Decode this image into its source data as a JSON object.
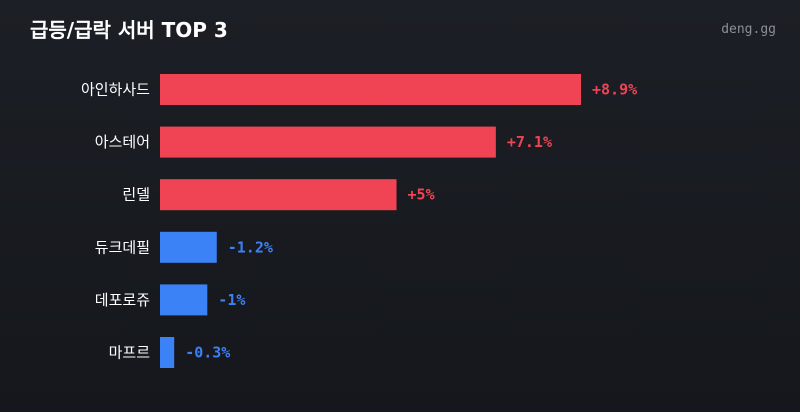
{
  "header": {
    "title": "급등/급락 서버 TOP 3",
    "brand": "deng.gg"
  },
  "colors": {
    "positive": "#f04455",
    "negative": "#3b82f6"
  },
  "chart_data": {
    "type": "bar",
    "orientation": "horizontal",
    "title": "급등/급락 서버 TOP 3",
    "categories": [
      "아인하사드",
      "아스테어",
      "린델",
      "듀크데필",
      "데포로쥬",
      "마프르"
    ],
    "values": [
      8.9,
      7.1,
      5,
      -1.2,
      -1,
      -0.3
    ],
    "value_labels": [
      "+8.9%",
      "+7.1%",
      "+5%",
      "-1.2%",
      "-1%",
      "-0.3%"
    ],
    "grid": false,
    "legend": "none"
  }
}
